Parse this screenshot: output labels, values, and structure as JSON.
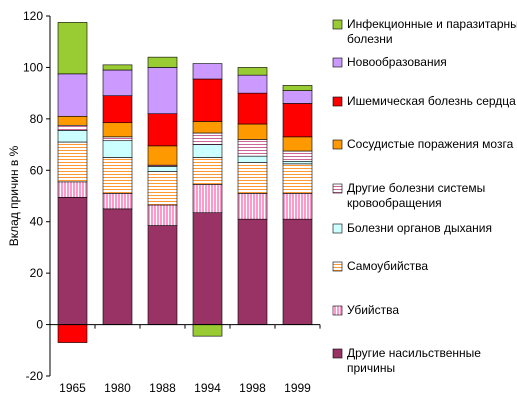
{
  "chart_data": {
    "type": "bar",
    "stacked": true,
    "title": "",
    "xlabel": "",
    "ylabel": "Вклад причин в %",
    "ylim": [
      -20,
      120
    ],
    "yticks": [
      -20,
      0,
      20,
      40,
      60,
      80,
      100,
      120
    ],
    "grid": false,
    "legend_position": "right",
    "categories": [
      "1965",
      "1980",
      "1988",
      "1994",
      "1998",
      "1999"
    ],
    "series": [
      {
        "name": "Другие насильственные причины",
        "color": "#993366",
        "pattern": "solid",
        "values": [
          49.5,
          45,
          38.5,
          43.5,
          41,
          41
        ]
      },
      {
        "name": "Убийства",
        "color": "#FF99CC",
        "pattern": "vlines",
        "values": [
          6,
          6,
          8,
          11,
          10,
          10
        ]
      },
      {
        "name": "Самоубийства",
        "color": "#FF9933",
        "pattern": "hlines",
        "values": [
          15.5,
          14,
          13,
          10.5,
          12,
          11.5
        ]
      },
      {
        "name": "Болезни органов дыхания",
        "color": "#CCFFFF",
        "pattern": "solid",
        "values": [
          4.5,
          6.5,
          2,
          5,
          2.5,
          1
        ]
      },
      {
        "name": "Другие болезни системы кровообращения",
        "color": "#CC6699",
        "pattern": "hlines",
        "values": [
          2,
          1.5,
          0.5,
          4.5,
          6.5,
          4
        ]
      },
      {
        "name": "Сосудистые поражения мозга",
        "color": "#FF9900",
        "pattern": "solid",
        "values": [
          3.5,
          5.5,
          7.5,
          4.5,
          6,
          5.5
        ]
      },
      {
        "name": "Ишемическая болезнь сердца",
        "color": "#FF0000",
        "pattern": "solid",
        "values": [
          -7,
          10.5,
          12.5,
          16.5,
          12,
          13
        ]
      },
      {
        "name": "Новообразования",
        "color": "#CC99FF",
        "pattern": "solid",
        "values": [
          16.5,
          10,
          18,
          6,
          7,
          5
        ]
      },
      {
        "name": "Инфекционные и паразитарные болезни",
        "color": "#99CC33",
        "pattern": "solid",
        "values": [
          20,
          2,
          4,
          -4.5,
          3,
          2
        ]
      }
    ]
  }
}
